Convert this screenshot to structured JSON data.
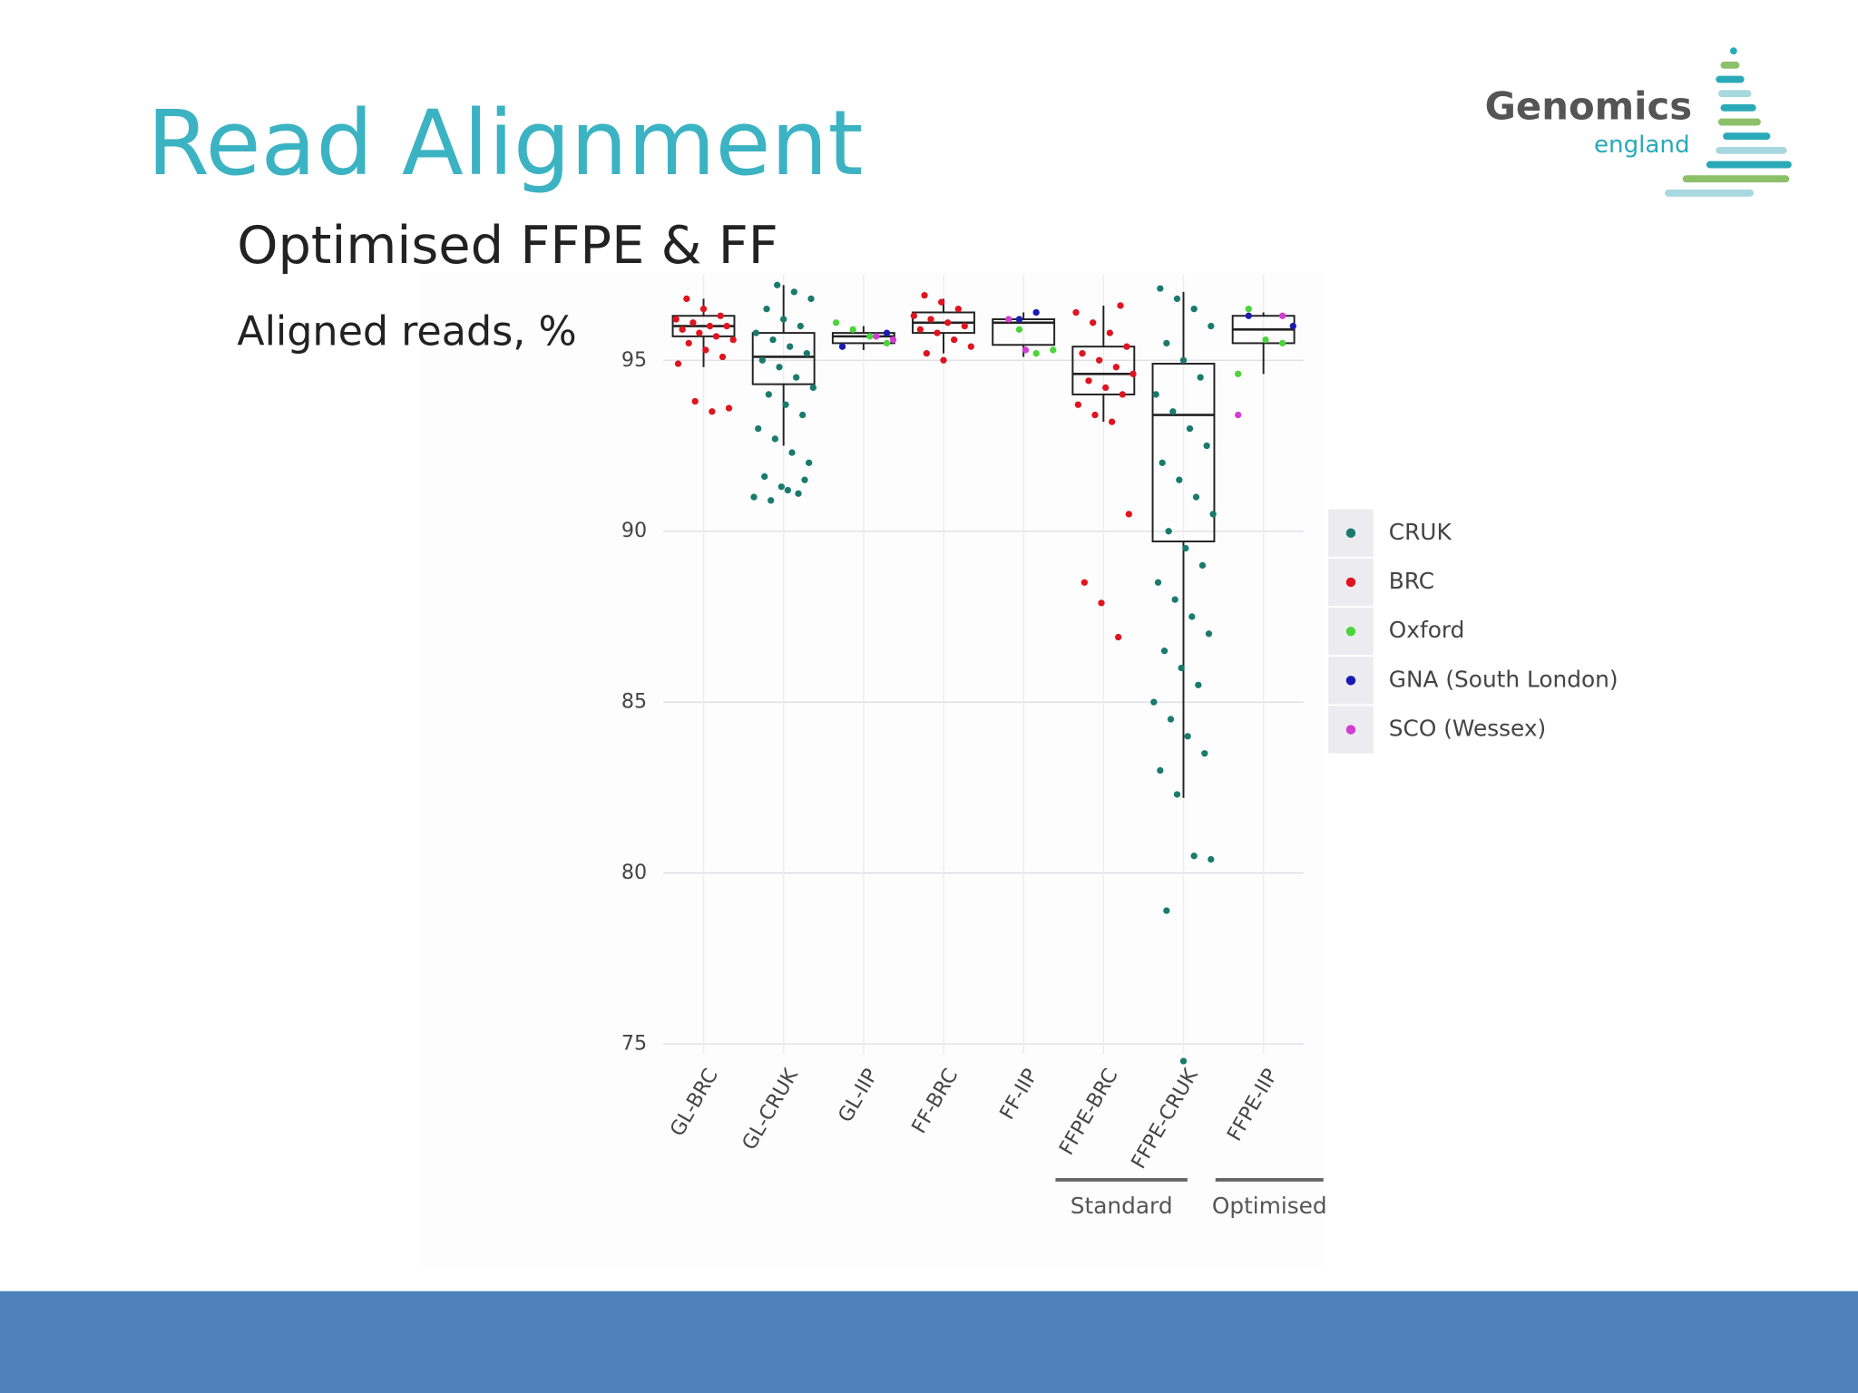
{
  "header": {
    "title": "Read Alignment",
    "logo": {
      "name": "Genomics",
      "sub": "england"
    }
  },
  "chart_data": {
    "type": "box-jitter",
    "title": "Optimised FFPE & FF",
    "y_label": "Aligned reads, %",
    "categories": [
      "GL-BRC",
      "GL-CRUK",
      "GL-IIP",
      "FF-BRC",
      "FF-IIP",
      "FFPE-BRC",
      "FFPE-CRUK",
      "FFPE-IIP"
    ],
    "ylim": [
      74.7,
      97.5
    ],
    "yticks": [
      75,
      80,
      85,
      90,
      95
    ],
    "grid": true,
    "boxes": [
      {
        "low": 94.8,
        "q1": 95.7,
        "median": 96.0,
        "q3": 96.3,
        "high": 96.8
      },
      {
        "low": 92.5,
        "q1": 94.3,
        "median": 95.1,
        "q3": 95.8,
        "high": 97.2
      },
      {
        "low": 95.3,
        "q1": 95.5,
        "median": 95.7,
        "q3": 95.8,
        "high": 96.0
      },
      {
        "low": 95.2,
        "q1": 95.8,
        "median": 96.1,
        "q3": 96.4,
        "high": 96.8
      },
      {
        "low": 95.1,
        "q1": 95.45,
        "median": 96.1,
        "q3": 96.2,
        "high": 96.4
      },
      {
        "low": 93.2,
        "q1": 94.0,
        "median": 94.6,
        "q3": 95.4,
        "high": 96.6
      },
      {
        "low": 82.2,
        "q1": 89.7,
        "median": 93.4,
        "q3": 94.9,
        "high": 97.0
      },
      {
        "low": 94.6,
        "q1": 95.5,
        "median": 95.9,
        "q3": 96.3,
        "high": 96.4
      }
    ],
    "series": [
      {
        "name": "CRUK",
        "color": "#1a7a6e",
        "x": [
          "GL-CRUK",
          "GL-CRUK",
          "GL-CRUK",
          "GL-CRUK",
          "GL-CRUK",
          "GL-CRUK",
          "GL-CRUK",
          "GL-CRUK",
          "GL-CRUK",
          "GL-CRUK",
          "GL-CRUK",
          "GL-CRUK",
          "GL-CRUK",
          "GL-CRUK",
          "GL-CRUK",
          "GL-CRUK",
          "GL-CRUK",
          "GL-CRUK",
          "GL-CRUK",
          "GL-CRUK",
          "GL-CRUK",
          "GL-CRUK",
          "GL-CRUK",
          "GL-CRUK",
          "GL-CRUK",
          "GL-CRUK",
          "GL-CRUK",
          "GL-CRUK",
          "FFPE-CRUK",
          "FFPE-CRUK",
          "FFPE-CRUK",
          "FFPE-CRUK",
          "FFPE-CRUK",
          "FFPE-CRUK",
          "FFPE-CRUK",
          "FFPE-CRUK",
          "FFPE-CRUK",
          "FFPE-CRUK",
          "FFPE-CRUK",
          "FFPE-CRUK",
          "FFPE-CRUK",
          "FFPE-CRUK",
          "FFPE-CRUK",
          "FFPE-CRUK",
          "FFPE-CRUK",
          "FFPE-CRUK",
          "FFPE-CRUK",
          "FFPE-CRUK",
          "FFPE-CRUK",
          "FFPE-CRUK",
          "FFPE-CRUK",
          "FFPE-CRUK",
          "FFPE-CRUK",
          "FFPE-CRUK",
          "FFPE-CRUK",
          "FFPE-CRUK",
          "FFPE-CRUK",
          "FFPE-CRUK",
          "FFPE-CRUK",
          "FFPE-CRUK",
          "FFPE-CRUK",
          "FFPE-CRUK",
          "FFPE-CRUK"
        ],
        "values": [
          97.2,
          97.0,
          96.8,
          96.5,
          96.2,
          96.0,
          95.8,
          95.6,
          95.4,
          95.2,
          95.0,
          94.8,
          94.5,
          94.2,
          94.0,
          93.7,
          93.4,
          93.0,
          92.7,
          92.3,
          92.0,
          91.6,
          91.3,
          91.1,
          91.0,
          90.9,
          91.2,
          91.5,
          97.1,
          96.8,
          96.5,
          96.0,
          95.5,
          95.0,
          94.5,
          94.0,
          93.5,
          93.0,
          92.5,
          92.0,
          91.5,
          91.0,
          90.5,
          90.0,
          89.5,
          89.0,
          88.5,
          88.0,
          87.5,
          87.0,
          86.5,
          86.0,
          85.5,
          85.0,
          84.5,
          84.0,
          83.5,
          83.0,
          82.3,
          80.5,
          80.4,
          78.9,
          74.5
        ]
      },
      {
        "name": "BRC",
        "color": "#e0141e",
        "x": [
          "GL-BRC",
          "GL-BRC",
          "GL-BRC",
          "GL-BRC",
          "GL-BRC",
          "GL-BRC",
          "GL-BRC",
          "GL-BRC",
          "GL-BRC",
          "GL-BRC",
          "GL-BRC",
          "GL-BRC",
          "GL-BRC",
          "GL-BRC",
          "GL-BRC",
          "GL-BRC",
          "GL-BRC",
          "GL-BRC",
          "FF-BRC",
          "FF-BRC",
          "FF-BRC",
          "FF-BRC",
          "FF-BRC",
          "FF-BRC",
          "FF-BRC",
          "FF-BRC",
          "FF-BRC",
          "FF-BRC",
          "FF-BRC",
          "FF-BRC",
          "FF-BRC",
          "FFPE-BRC",
          "FFPE-BRC",
          "FFPE-BRC",
          "FFPE-BRC",
          "FFPE-BRC",
          "FFPE-BRC",
          "FFPE-BRC",
          "FFPE-BRC",
          "FFPE-BRC",
          "FFPE-BRC",
          "FFPE-BRC",
          "FFPE-BRC",
          "FFPE-BRC",
          "FFPE-BRC",
          "FFPE-BRC",
          "FFPE-BRC",
          "FFPE-BRC",
          "FFPE-BRC",
          "FFPE-BRC"
        ],
        "values": [
          96.8,
          96.5,
          96.3,
          96.2,
          96.1,
          96.0,
          96.0,
          95.9,
          95.8,
          95.7,
          95.6,
          95.5,
          95.3,
          95.1,
          94.9,
          93.8,
          93.5,
          93.6,
          96.9,
          96.7,
          96.5,
          96.3,
          96.2,
          96.1,
          96.0,
          95.9,
          95.8,
          95.6,
          95.4,
          95.2,
          95.0,
          96.6,
          96.4,
          96.1,
          95.8,
          95.4,
          95.2,
          95.0,
          94.8,
          94.6,
          94.4,
          94.2,
          94.0,
          93.7,
          93.4,
          93.2,
          90.5,
          88.5,
          87.9,
          86.9
        ]
      },
      {
        "name": "Oxford",
        "color": "#4cd43c",
        "x": [
          "GL-IIP",
          "GL-IIP",
          "GL-IIP",
          "GL-IIP",
          "GL-IIP",
          "FF-IIP",
          "FF-IIP",
          "FF-IIP",
          "FFPE-IIP",
          "FFPE-IIP",
          "FFPE-IIP",
          "FFPE-IIP"
        ],
        "values": [
          96.1,
          95.9,
          95.7,
          95.5,
          95.4,
          95.9,
          95.2,
          95.3,
          96.5,
          95.6,
          95.5,
          94.6
        ]
      },
      {
        "name": "GNA (South London)",
        "color": "#1a1ab4",
        "x": [
          "GL-IIP",
          "GL-IIP",
          "FF-IIP",
          "FF-IIP",
          "FFPE-IIP",
          "FFPE-IIP"
        ],
        "values": [
          95.8,
          95.4,
          96.2,
          96.4,
          96.0,
          96.3
        ]
      },
      {
        "name": "SCO (Wessex)",
        "color": "#d23cd2",
        "x": [
          "GL-IIP",
          "GL-IIP",
          "FF-IIP",
          "FF-IIP",
          "FFPE-IIP",
          "FFPE-IIP"
        ],
        "values": [
          95.7,
          95.6,
          96.2,
          95.3,
          96.3,
          93.4
        ]
      }
    ],
    "annotations": [
      {
        "text": "Standard",
        "categories": [
          "FFPE-BRC",
          "FFPE-CRUK"
        ]
      },
      {
        "text": "Optimised",
        "categories": [
          "FFPE-IIP"
        ]
      }
    ]
  }
}
